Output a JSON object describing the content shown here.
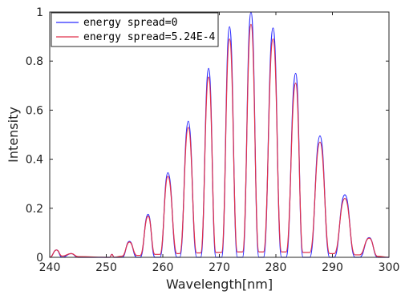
{
  "chart_data": {
    "type": "line",
    "xlabel": "Wavelength[nm]",
    "ylabel": "Intensity",
    "xlim": [
      240,
      300
    ],
    "ylim": [
      0,
      1
    ],
    "xticks": [
      "240",
      "250",
      "260",
      "270",
      "280",
      "290",
      "300"
    ],
    "yticks": [
      "0",
      "0.2",
      "0.4",
      "0.6",
      "0.8",
      "1"
    ],
    "grid": false,
    "legend_position": "top-left",
    "series": [
      {
        "name": "energy spread=0",
        "color": "#2b2bff",
        "points": [
          [
            240,
            0
          ],
          [
            241.2,
            0.03
          ],
          [
            242.2,
            0
          ],
          [
            243.8,
            0.015
          ],
          [
            245.0,
            0
          ],
          [
            250.6,
            0
          ],
          [
            251.0,
            0.012
          ],
          [
            251.4,
            0
          ],
          [
            252.8,
            0
          ],
          [
            254.1,
            0.065
          ],
          [
            255.4,
            0
          ],
          [
            256.0,
            0
          ],
          [
            257.4,
            0.175
          ],
          [
            258.6,
            0
          ],
          [
            259.5,
            0
          ],
          [
            260.9,
            0.345
          ],
          [
            262.5,
            0
          ],
          [
            263.0,
            0
          ],
          [
            264.5,
            0.555
          ],
          [
            266.0,
            0
          ],
          [
            266.7,
            0
          ],
          [
            268.1,
            0.77
          ],
          [
            269.4,
            0
          ],
          [
            270.4,
            0
          ],
          [
            271.8,
            0.94
          ],
          [
            273.2,
            0
          ],
          [
            274.1,
            0
          ],
          [
            275.6,
            1.0
          ],
          [
            277.0,
            0
          ],
          [
            277.8,
            0
          ],
          [
            279.5,
            0.935
          ],
          [
            281.0,
            0
          ],
          [
            281.8,
            0
          ],
          [
            283.5,
            0.75
          ],
          [
            284.8,
            0
          ],
          [
            286.0,
            0
          ],
          [
            287.8,
            0.495
          ],
          [
            289.5,
            0
          ],
          [
            290.3,
            0
          ],
          [
            292.2,
            0.255
          ],
          [
            294.0,
            0
          ],
          [
            294.8,
            0
          ],
          [
            296.5,
            0.08
          ],
          [
            298.0,
            0
          ],
          [
            300,
            0
          ]
        ]
      },
      {
        "name": "energy spread=5.24E-4",
        "color": "#e0304a",
        "points": [
          [
            240,
            0
          ],
          [
            241.2,
            0.03
          ],
          [
            242.2,
            0.005
          ],
          [
            243.8,
            0.015
          ],
          [
            245.0,
            0.003
          ],
          [
            250.6,
            0
          ],
          [
            251.0,
            0.012
          ],
          [
            251.4,
            0
          ],
          [
            252.8,
            0.005
          ],
          [
            254.1,
            0.062
          ],
          [
            255.4,
            0.008
          ],
          [
            256.0,
            0.008
          ],
          [
            257.4,
            0.168
          ],
          [
            258.6,
            0.012
          ],
          [
            259.5,
            0.012
          ],
          [
            260.9,
            0.33
          ],
          [
            262.5,
            0.015
          ],
          [
            263.0,
            0.015
          ],
          [
            264.5,
            0.53
          ],
          [
            266.0,
            0.018
          ],
          [
            266.7,
            0.018
          ],
          [
            268.1,
            0.735
          ],
          [
            269.4,
            0.02
          ],
          [
            270.4,
            0.02
          ],
          [
            271.8,
            0.89
          ],
          [
            273.2,
            0.022
          ],
          [
            274.1,
            0.022
          ],
          [
            275.6,
            0.95
          ],
          [
            277.0,
            0.022
          ],
          [
            277.8,
            0.022
          ],
          [
            279.5,
            0.89
          ],
          [
            281.0,
            0.022
          ],
          [
            281.8,
            0.022
          ],
          [
            283.5,
            0.71
          ],
          [
            284.8,
            0.02
          ],
          [
            286.0,
            0.02
          ],
          [
            287.8,
            0.47
          ],
          [
            289.5,
            0.015
          ],
          [
            290.3,
            0.015
          ],
          [
            292.2,
            0.24
          ],
          [
            294.0,
            0.01
          ],
          [
            294.8,
            0.01
          ],
          [
            296.5,
            0.078
          ],
          [
            298.0,
            0.004
          ],
          [
            300,
            0
          ]
        ]
      }
    ]
  }
}
